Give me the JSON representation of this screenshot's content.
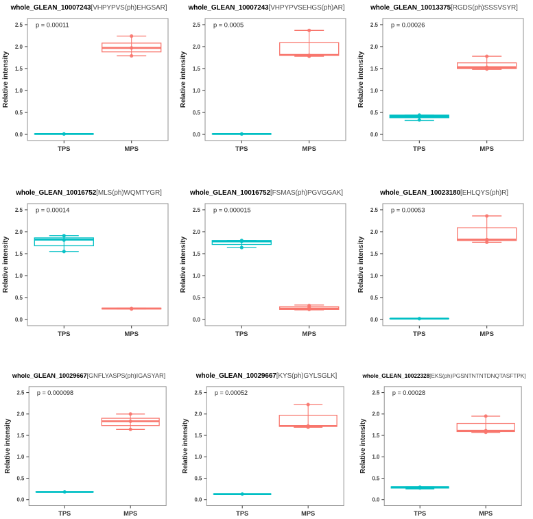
{
  "figure": {
    "description": "3x3 grid of boxplots of phosphopeptide relative intensity, TPS vs MPS",
    "group_colors": {
      "TPS": "#00BFC4",
      "MPS": "#F8766D"
    }
  },
  "chart_data": [
    {
      "type": "box",
      "title_bold": "whole_GLEAN_10007243",
      "title_peptide": "[VHPYPVS(ph)EHGSAR]",
      "p_label": "p = 0.00011",
      "ylabel": "Relative intensity",
      "yticks": [
        0.0,
        0.5,
        1.0,
        1.5,
        2.0,
        2.5
      ],
      "ylim": [
        -0.14,
        2.64
      ],
      "categories": [
        "TPS",
        "MPS"
      ],
      "series": [
        {
          "name": "TPS",
          "color": "#00BFC4",
          "whisker_low": 0.01,
          "q1": 0.01,
          "median": 0.01,
          "q3": 0.01,
          "whisker_high": 0.01,
          "points": [
            0.01
          ]
        },
        {
          "name": "MPS",
          "color": "#F8766D",
          "whisker_low": 1.79,
          "q1": 1.88,
          "median": 1.97,
          "q3": 2.08,
          "whisker_high": 2.24,
          "points": [
            2.24,
            1.97,
            1.79
          ]
        }
      ]
    },
    {
      "type": "box",
      "title_bold": "whole_GLEAN_10007243",
      "title_peptide": "[VHPYPVSEHGS(ph)AR]",
      "p_label": "p = 0.0005",
      "ylabel": "Relative intensity",
      "yticks": [
        0.0,
        0.5,
        1.0,
        1.5,
        2.0,
        2.5
      ],
      "ylim": [
        -0.14,
        2.64
      ],
      "categories": [
        "TPS",
        "MPS"
      ],
      "series": [
        {
          "name": "TPS",
          "color": "#00BFC4",
          "whisker_low": 0.01,
          "q1": 0.01,
          "median": 0.01,
          "q3": 0.01,
          "whisker_high": 0.01,
          "points": [
            0.01
          ]
        },
        {
          "name": "MPS",
          "color": "#F8766D",
          "whisker_low": 1.78,
          "q1": 1.8,
          "median": 1.81,
          "q3": 2.09,
          "whisker_high": 2.37,
          "points": [
            2.37,
            1.8,
            1.78
          ]
        }
      ]
    },
    {
      "type": "box",
      "title_bold": "whole_GLEAN_10013375",
      "title_peptide": "[RGDS(ph)SSSVSYR]",
      "p_label": "p = 0.00026",
      "ylabel": "Relative intensity",
      "yticks": [
        0.0,
        0.5,
        1.0,
        1.5,
        2.0,
        2.5
      ],
      "ylim": [
        -0.14,
        2.64
      ],
      "categories": [
        "TPS",
        "MPS"
      ],
      "series": [
        {
          "name": "TPS",
          "color": "#00BFC4",
          "whisker_low": 0.32,
          "q1": 0.38,
          "median": 0.41,
          "q3": 0.44,
          "whisker_high": 0.44,
          "points": [
            0.44,
            0.41,
            0.33
          ]
        },
        {
          "name": "MPS",
          "color": "#F8766D",
          "whisker_low": 1.48,
          "q1": 1.5,
          "median": 1.53,
          "q3": 1.63,
          "whisker_high": 1.78,
          "points": [
            1.78,
            1.53,
            1.49
          ]
        }
      ]
    },
    {
      "type": "box",
      "title_bold": "whole_GLEAN_10016752",
      "title_peptide": "[MLS(ph)WQMTYGR]",
      "p_label": "p = 0.00014",
      "ylabel": "Relative intensity",
      "yticks": [
        0.0,
        0.5,
        1.0,
        1.5,
        2.0,
        2.5
      ],
      "ylim": [
        -0.14,
        2.64
      ],
      "categories": [
        "TPS",
        "MPS"
      ],
      "series": [
        {
          "name": "TPS",
          "color": "#00BFC4",
          "whisker_low": 1.55,
          "q1": 1.68,
          "median": 1.82,
          "q3": 1.86,
          "whisker_high": 1.91,
          "points": [
            1.91,
            1.81,
            1.55
          ]
        },
        {
          "name": "MPS",
          "color": "#F8766D",
          "whisker_low": 0.24,
          "q1": 0.24,
          "median": 0.25,
          "q3": 0.26,
          "whisker_high": 0.26,
          "points": [
            0.25,
            0.24
          ]
        }
      ]
    },
    {
      "type": "box",
      "title_bold": "whole_GLEAN_10016752",
      "title_peptide": "[FSMAS(ph)PGVGGAK]",
      "p_label": "p = 0.000015",
      "ylabel": "Relative intensity",
      "yticks": [
        0.0,
        0.5,
        1.0,
        1.5,
        2.0,
        2.5
      ],
      "ylim": [
        -0.14,
        2.64
      ],
      "categories": [
        "TPS",
        "MPS"
      ],
      "series": [
        {
          "name": "TPS",
          "color": "#00BFC4",
          "whisker_low": 1.64,
          "q1": 1.71,
          "median": 1.78,
          "q3": 1.8,
          "whisker_high": 1.8,
          "points": [
            1.8,
            1.78,
            1.64
          ]
        },
        {
          "name": "MPS",
          "color": "#F8766D",
          "whisker_low": 0.22,
          "q1": 0.23,
          "median": 0.25,
          "q3": 0.29,
          "whisker_high": 0.33,
          "points": [
            0.32,
            0.27,
            0.23
          ]
        }
      ]
    },
    {
      "type": "box",
      "title_bold": "whole_GLEAN_10023180",
      "title_peptide": "[EHLQYS(ph)R]",
      "p_label": "p = 0.00053",
      "ylabel": "Relative intensity",
      "yticks": [
        0.0,
        0.5,
        1.0,
        1.5,
        2.0,
        2.5
      ],
      "ylim": [
        -0.14,
        2.64
      ],
      "categories": [
        "TPS",
        "MPS"
      ],
      "series": [
        {
          "name": "TPS",
          "color": "#00BFC4",
          "whisker_low": 0.02,
          "q1": 0.02,
          "median": 0.02,
          "q3": 0.02,
          "whisker_high": 0.02,
          "points": [
            0.02
          ]
        },
        {
          "name": "MPS",
          "color": "#F8766D",
          "whisker_low": 1.76,
          "q1": 1.8,
          "median": 1.82,
          "q3": 2.09,
          "whisker_high": 2.36,
          "points": [
            2.36,
            1.82,
            1.76
          ]
        }
      ]
    },
    {
      "type": "box",
      "title_bold": "whole_GLEAN_10029667",
      "title_peptide": "[GNFLYASPS(ph)IGASYAR]",
      "p_label": "p = 0.000098",
      "ylabel": "Relative intensity",
      "yticks": [
        0.0,
        0.5,
        1.0,
        1.5,
        2.0,
        2.5
      ],
      "ylim": [
        -0.14,
        2.64
      ],
      "categories": [
        "TPS",
        "MPS"
      ],
      "series": [
        {
          "name": "TPS",
          "color": "#00BFC4",
          "whisker_low": 0.18,
          "q1": 0.18,
          "median": 0.18,
          "q3": 0.18,
          "whisker_high": 0.18,
          "points": [
            0.18
          ]
        },
        {
          "name": "MPS",
          "color": "#F8766D",
          "whisker_low": 1.64,
          "q1": 1.73,
          "median": 1.83,
          "q3": 1.9,
          "whisker_high": 2.0,
          "points": [
            2.0,
            1.83,
            1.64
          ]
        }
      ]
    },
    {
      "type": "box",
      "title_bold": "whole_GLEAN_10029667",
      "title_peptide": "[KYS(ph)GYLSGLK]",
      "p_label": "p = 0.00052",
      "ylabel": "Relative intensity",
      "yticks": [
        0.0,
        0.5,
        1.0,
        1.5,
        2.0,
        2.5
      ],
      "ylim": [
        -0.14,
        2.64
      ],
      "categories": [
        "TPS",
        "MPS"
      ],
      "series": [
        {
          "name": "TPS",
          "color": "#00BFC4",
          "whisker_low": 0.13,
          "q1": 0.13,
          "median": 0.13,
          "q3": 0.13,
          "whisker_high": 0.13,
          "points": [
            0.13
          ]
        },
        {
          "name": "MPS",
          "color": "#F8766D",
          "whisker_low": 1.69,
          "q1": 1.71,
          "median": 1.72,
          "q3": 1.97,
          "whisker_high": 2.22,
          "points": [
            2.22,
            1.72,
            1.69
          ]
        }
      ]
    },
    {
      "type": "box",
      "title_bold": "whole_GLEAN_10022328",
      "title_peptide": "[EKS(ph)PGSNTNTNTDNQTASFTPK]",
      "p_label": "p = 0.00028",
      "ylabel": "Relative intensity",
      "yticks": [
        0.0,
        0.5,
        1.0,
        1.5,
        2.0,
        2.5
      ],
      "ylim": [
        -0.14,
        2.64
      ],
      "categories": [
        "TPS",
        "MPS"
      ],
      "series": [
        {
          "name": "TPS",
          "color": "#00BFC4",
          "whisker_low": 0.25,
          "q1": 0.27,
          "median": 0.29,
          "q3": 0.3,
          "whisker_high": 0.3,
          "points": [
            0.29,
            0.27
          ]
        },
        {
          "name": "MPS",
          "color": "#F8766D",
          "whisker_low": 1.57,
          "q1": 1.59,
          "median": 1.61,
          "q3": 1.78,
          "whisker_high": 1.95,
          "points": [
            1.95,
            1.61,
            1.57
          ]
        }
      ]
    }
  ]
}
